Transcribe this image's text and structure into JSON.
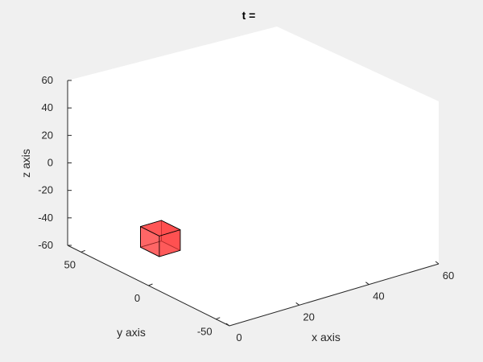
{
  "chart_data": {
    "type": "3d-patch",
    "title": "t =",
    "xlabel": "x axis",
    "ylabel": "y axis",
    "zlabel": "z axis",
    "xlim": [
      0,
      60
    ],
    "ylim": [
      -60,
      60
    ],
    "zlim": [
      -60,
      60
    ],
    "xticks": [
      "0",
      "20",
      "40",
      "60"
    ],
    "yticks": [
      "-50",
      "0",
      "50"
    ],
    "zticks": [
      "-60",
      "-40",
      "-20",
      "0",
      "20",
      "40",
      "60"
    ],
    "grid": false,
    "colors": {
      "background": "#f0f0f0",
      "axes": "#ffffff",
      "cube_fill": "#ff4040",
      "cube_edge": "#000000"
    },
    "cube": {
      "x": [
        0,
        6
      ],
      "y": [
        -8,
        6
      ],
      "z": [
        -35,
        -20
      ]
    }
  }
}
